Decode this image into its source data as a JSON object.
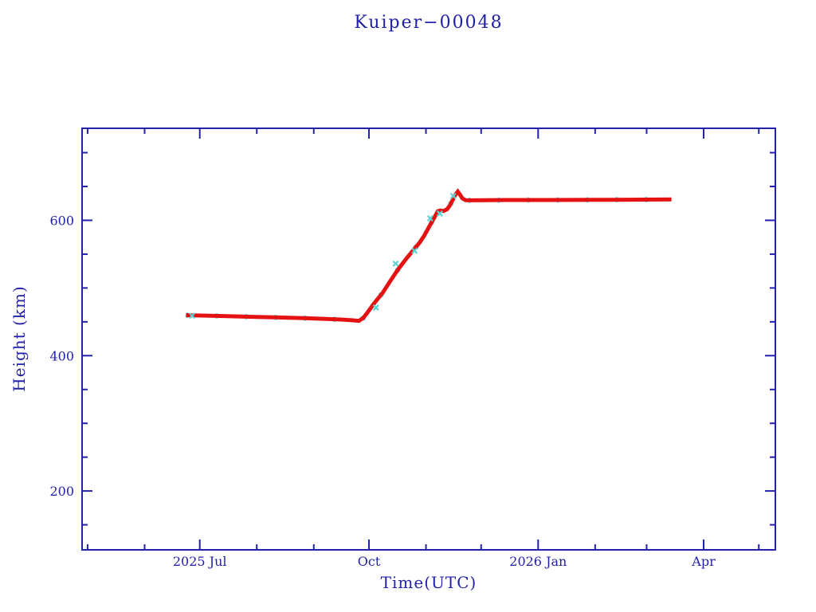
{
  "page": {
    "background": "#ffffff"
  },
  "chart_data": {
    "type": "line",
    "title": "Kuiper−00048",
    "xlabel": "Time(UTC)",
    "ylabel": "Height (km)",
    "frame_color": "#2121aa",
    "text_color": "#2121aa",
    "grid": false,
    "legend": "none",
    "x_unit": "days since 2025-01-01",
    "xlim": [
      117,
      494
    ],
    "ylim": [
      113,
      736
    ],
    "x_ticks_major": [
      {
        "day": 181,
        "label": "2025 Jul"
      },
      {
        "day": 273,
        "label": "Oct"
      },
      {
        "day": 365,
        "label": "2026 Jan"
      },
      {
        "day": 455,
        "label": "Apr"
      }
    ],
    "x_ticks_minor": [
      120,
      151,
      212,
      243,
      304,
      334,
      396,
      424,
      485
    ],
    "y_ticks_major": [
      {
        "value": 200,
        "label": "200"
      },
      {
        "value": 400,
        "label": "400"
      },
      {
        "value": 600,
        "label": "600"
      }
    ],
    "y_ticks_minor": [
      150,
      250,
      300,
      350,
      450,
      500,
      550,
      650,
      700
    ],
    "series": [
      {
        "name": "height-secondary-markers",
        "color": "#5ad4d4",
        "style": "x-markers",
        "points": [
          [
            176.8,
            459.0
          ],
          [
            276.8,
            471.0
          ],
          [
            287.5,
            536.0
          ],
          [
            297.8,
            555.0
          ],
          [
            306.3,
            603.0
          ],
          [
            311.5,
            610.0
          ],
          [
            318.8,
            636.0
          ]
        ]
      },
      {
        "name": "height-primary",
        "color": "#e41212",
        "style": "thick-line",
        "points": [
          [
            173.5,
            459.8
          ],
          [
            182,
            459.2
          ],
          [
            196,
            458.3
          ],
          [
            210,
            457.3
          ],
          [
            224,
            456.4
          ],
          [
            238,
            455.3
          ],
          [
            250,
            454.2
          ],
          [
            259,
            453.2
          ],
          [
            264.5,
            452.2
          ],
          [
            267.5,
            451.3
          ],
          [
            270,
            456
          ],
          [
            272,
            463
          ],
          [
            276,
            478
          ],
          [
            280.5,
            493
          ],
          [
            285,
            512
          ],
          [
            289,
            528
          ],
          [
            293.5,
            544
          ],
          [
            297.5,
            557
          ],
          [
            300.5,
            567
          ],
          [
            303,
            577
          ],
          [
            306,
            592
          ],
          [
            308.5,
            604
          ],
          [
            310.5,
            613.5
          ],
          [
            311.8,
            614.5
          ],
          [
            313.5,
            613.8
          ],
          [
            315.5,
            616.5
          ],
          [
            317,
            622
          ],
          [
            318.5,
            630
          ],
          [
            320,
            638
          ],
          [
            321.3,
            642.5
          ],
          [
            322.5,
            638
          ],
          [
            323.8,
            632.5
          ],
          [
            325.5,
            629.8
          ],
          [
            328,
            629.5
          ],
          [
            335,
            629.8
          ],
          [
            350,
            630
          ],
          [
            370,
            630
          ],
          [
            395,
            630.2
          ],
          [
            415,
            630.5
          ],
          [
            437.5,
            630.8
          ]
        ]
      }
    ]
  }
}
